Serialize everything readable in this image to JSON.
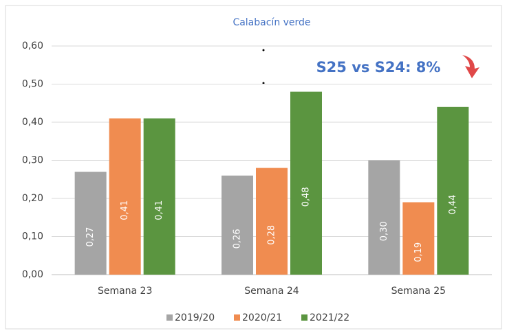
{
  "chart_data": {
    "type": "bar",
    "title": "Calabacín verde",
    "annotation": "S25 vs S24: 8%",
    "categories": [
      "Semana 23",
      "Semana 24",
      "Semana 25"
    ],
    "series": [
      {
        "name": "2019/20",
        "color": "#a5a5a5",
        "values": [
          0.27,
          0.26,
          0.3
        ],
        "value_labels": [
          "0,27",
          "0,26",
          "0,30"
        ]
      },
      {
        "name": "2020/21",
        "color": "#f08c50",
        "values": [
          0.41,
          0.28,
          0.19
        ],
        "value_labels": [
          "0,41",
          "0,28",
          "0,19"
        ]
      },
      {
        "name": "2021/22",
        "color": "#5b9540",
        "values": [
          0.41,
          0.48,
          0.44
        ],
        "value_labels": [
          "0,41",
          "0,48",
          "0,44"
        ]
      }
    ],
    "ylim": [
      0,
      0.6
    ],
    "yticks": [
      {
        "value": 0,
        "label": "0,00"
      },
      {
        "value": 0.1,
        "label": "0,10"
      },
      {
        "value": 0.2,
        "label": "0,20"
      },
      {
        "value": 0.3,
        "label": "0,30"
      },
      {
        "value": 0.4,
        "label": "0,40"
      },
      {
        "value": 0.5,
        "label": "0,50"
      },
      {
        "value": 0.6,
        "label": "0,60"
      }
    ],
    "grid": true
  }
}
